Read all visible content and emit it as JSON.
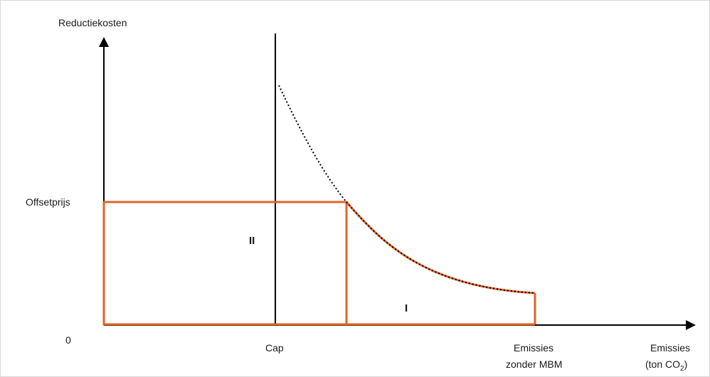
{
  "diagram": {
    "y_axis_label": "Reductiekosten",
    "origin_label": "0",
    "offset_label": "Offsetprijs",
    "cap_label": "Cap",
    "emissions_no_mbm_line1": "Emissies",
    "emissions_no_mbm_line2": "zonder MBM",
    "x_axis_label_line1": "Emissies",
    "x_axis_label_line2_prefix": "(ton CO",
    "x_axis_label_subscript": "2",
    "x_axis_label_line2_suffix": ")",
    "region_1_label": "I",
    "region_2_label": "II",
    "colors": {
      "axis": "#000000",
      "highlight": "#e0652a",
      "curve_dotted": "#000000"
    }
  }
}
